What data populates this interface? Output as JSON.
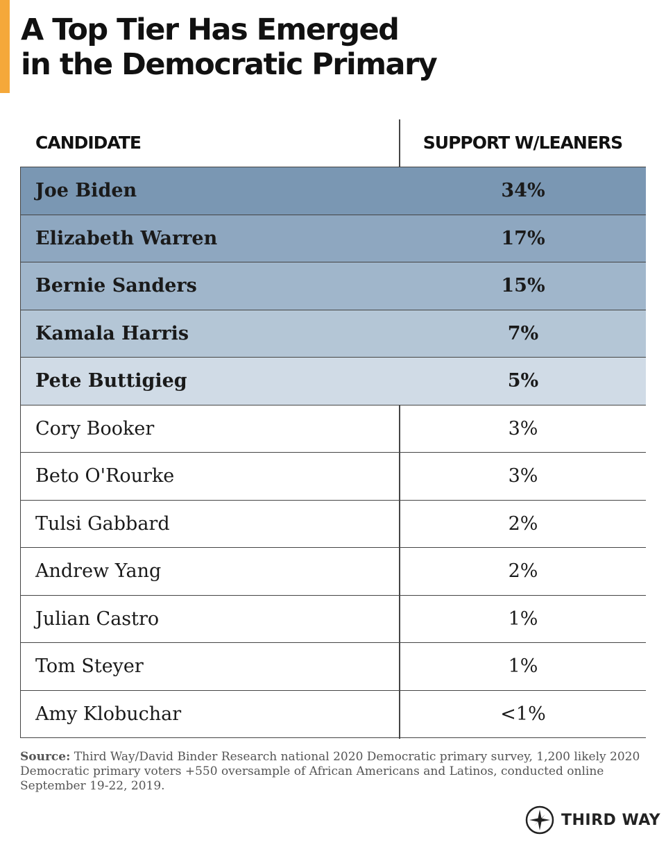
{
  "title": {
    "line1": "A Top Tier Has Emerged",
    "line2": "in the Democratic Primary"
  },
  "colors": {
    "accent": "#f5a83a",
    "tier_shades": [
      "#7a97b3",
      "#8ea7c0",
      "#a0b6cb",
      "#b4c6d6",
      "#d0dbe6"
    ]
  },
  "chart_data": {
    "type": "table",
    "columns": [
      "CANDIDATE",
      "SUPPORT W/LEANERS"
    ],
    "rows": [
      {
        "candidate": "Joe Biden",
        "support": "34%",
        "value": 34,
        "highlight": true
      },
      {
        "candidate": "Elizabeth Warren",
        "support": "17%",
        "value": 17,
        "highlight": true
      },
      {
        "candidate": "Bernie Sanders",
        "support": "15%",
        "value": 15,
        "highlight": true
      },
      {
        "candidate": "Kamala Harris",
        "support": "7%",
        "value": 7,
        "highlight": true
      },
      {
        "candidate": "Pete Buttigieg",
        "support": "5%",
        "value": 5,
        "highlight": true
      },
      {
        "candidate": "Cory Booker",
        "support": "3%",
        "value": 3,
        "highlight": false
      },
      {
        "candidate": "Beto O'Rourke",
        "support": "3%",
        "value": 3,
        "highlight": false
      },
      {
        "candidate": "Tulsi Gabbard",
        "support": "2%",
        "value": 2,
        "highlight": false
      },
      {
        "candidate": "Andrew Yang",
        "support": "2%",
        "value": 2,
        "highlight": false
      },
      {
        "candidate": "Julian Castro",
        "support": "1%",
        "value": 1,
        "highlight": false
      },
      {
        "candidate": "Tom Steyer",
        "support": "1%",
        "value": 1,
        "highlight": false
      },
      {
        "candidate": "Amy Klobuchar",
        "support": "<1%",
        "value": 0.5,
        "highlight": false
      }
    ]
  },
  "source": {
    "label": "Source:",
    "text": "Third Way/David Binder Research national 2020 Democratic primary survey, 1,200 likely 2020 Democratic primary voters +550 oversample of African Americans and Latinos, conducted online September 19-22, 2019."
  },
  "logo": {
    "text": "THIRD WAY",
    "icon": "compass-icon"
  }
}
